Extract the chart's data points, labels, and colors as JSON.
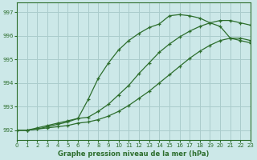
{
  "background_color": "#cce8e8",
  "grid_color": "#aacccc",
  "line_color": "#2d6e2d",
  "title": "Graphe pression niveau de la mer (hPa)",
  "xlim": [
    0,
    23
  ],
  "ylim": [
    991.6,
    997.4
  ],
  "yticks": [
    992,
    993,
    994,
    995,
    996,
    997
  ],
  "xticks": [
    0,
    1,
    2,
    3,
    4,
    5,
    6,
    7,
    8,
    9,
    10,
    11,
    12,
    13,
    14,
    15,
    16,
    17,
    18,
    19,
    20,
    21,
    22,
    23
  ],
  "line1_x": [
    0,
    1,
    2,
    3,
    4,
    5,
    6,
    7,
    8,
    9,
    10,
    11,
    12,
    13,
    14,
    15,
    16,
    17,
    18,
    19,
    20,
    21,
    22,
    23
  ],
  "line1_y": [
    992.0,
    992.0,
    992.1,
    992.2,
    992.3,
    992.4,
    992.5,
    993.3,
    994.2,
    994.85,
    995.4,
    995.8,
    996.1,
    996.35,
    996.5,
    996.85,
    996.9,
    996.85,
    996.75,
    996.55,
    996.4,
    995.9,
    995.8,
    995.7
  ],
  "line2_x": [
    0,
    1,
    2,
    3,
    4,
    5,
    6,
    7,
    8,
    9,
    10,
    11,
    12,
    13,
    14,
    15,
    16,
    17,
    18,
    19,
    20,
    21,
    22,
    23
  ],
  "line2_y": [
    992.0,
    992.0,
    992.05,
    992.15,
    992.25,
    992.35,
    992.5,
    992.55,
    992.8,
    993.1,
    993.5,
    993.9,
    994.4,
    994.85,
    995.3,
    995.65,
    995.95,
    996.2,
    996.4,
    996.55,
    996.65,
    996.65,
    996.55,
    996.45
  ],
  "line3_x": [
    0,
    1,
    2,
    3,
    4,
    5,
    6,
    7,
    8,
    9,
    10,
    11,
    12,
    13,
    14,
    15,
    16,
    17,
    18,
    19,
    20,
    21,
    22,
    23
  ],
  "line3_y": [
    992.0,
    992.0,
    992.05,
    992.1,
    992.15,
    992.2,
    992.3,
    992.35,
    992.45,
    992.6,
    992.8,
    993.05,
    993.35,
    993.65,
    994.0,
    994.35,
    994.7,
    995.05,
    995.35,
    995.6,
    995.8,
    995.9,
    995.9,
    995.8
  ]
}
